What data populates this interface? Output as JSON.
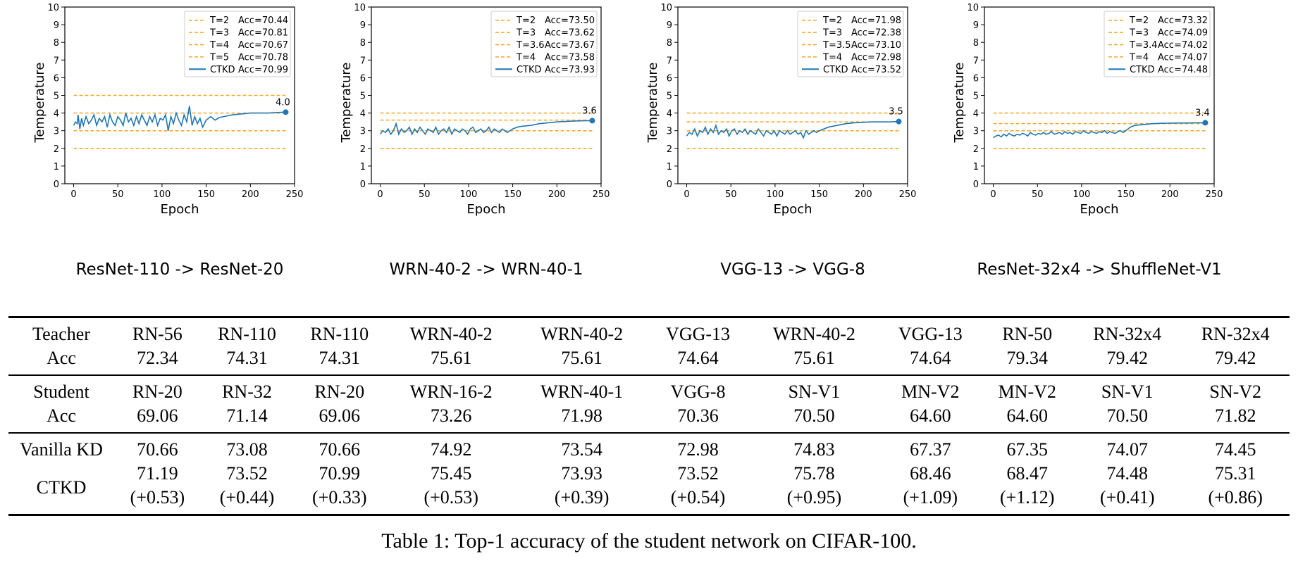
{
  "colors": {
    "threshold": "#f5a623",
    "ctkd": "#1f77b4",
    "axis": "#000000"
  },
  "chart_data": [
    {
      "type": "line",
      "title": "ResNet-110 -> ResNet-20",
      "xlabel": "Epoch",
      "ylabel": "Temperature",
      "xlim": [
        -10,
        250
      ],
      "ylim": [
        0,
        10
      ],
      "xticks": [
        0,
        50,
        100,
        150,
        200,
        250
      ],
      "yticks": [
        0,
        1,
        2,
        3,
        4,
        5,
        6,
        7,
        8,
        9,
        10
      ],
      "grid": false,
      "legend_position": "top-right",
      "thresholds": [
        {
          "label": "T=2",
          "acc": "Acc=70.44",
          "value": 2
        },
        {
          "label": "T=3",
          "acc": "Acc=70.81",
          "value": 3
        },
        {
          "label": "T=4",
          "acc": "Acc=70.67",
          "value": 4
        },
        {
          "label": "T=5",
          "acc": "Acc=70.78",
          "value": 5
        }
      ],
      "series": [
        {
          "name": "CTKD",
          "acc": "Acc=70.99",
          "x": [
            0,
            2,
            4,
            5,
            7,
            9,
            11,
            14,
            17,
            20,
            23,
            26,
            29,
            32,
            35,
            38,
            41,
            44,
            47,
            50,
            53,
            56,
            59,
            62,
            65,
            68,
            71,
            74,
            77,
            80,
            83,
            86,
            89,
            92,
            95,
            98,
            101,
            104,
            107,
            110,
            113,
            116,
            119,
            122,
            125,
            128,
            131,
            134,
            137,
            140,
            143,
            146,
            150,
            155,
            160,
            165,
            170,
            175,
            180,
            190,
            200,
            210,
            220,
            230,
            240
          ],
          "y": [
            3.3,
            3.5,
            3.4,
            3.9,
            3.1,
            3.7,
            3.3,
            3.8,
            3.4,
            3.6,
            3.9,
            3.3,
            3.7,
            3.5,
            3.8,
            3.2,
            3.9,
            3.5,
            3.3,
            3.8,
            3.6,
            3.3,
            4.0,
            3.5,
            3.7,
            3.3,
            3.8,
            3.4,
            3.9,
            3.6,
            3.3,
            3.8,
            3.5,
            3.9,
            3.3,
            3.7,
            3.6,
            3.9,
            3.0,
            3.8,
            3.4,
            4.0,
            3.6,
            3.3,
            3.9,
            3.5,
            4.4,
            3.3,
            3.8,
            3.4,
            3.7,
            3.2,
            3.6,
            3.8,
            3.6,
            3.75,
            3.8,
            3.85,
            3.9,
            3.95,
            4.0,
            4.0,
            4.0,
            4.03,
            4.05
          ],
          "end_label": "4.0"
        }
      ]
    },
    {
      "type": "line",
      "title": "WRN-40-2 -> WRN-40-1",
      "xlabel": "Epoch",
      "ylabel": "Temperature",
      "xlim": [
        -10,
        250
      ],
      "ylim": [
        0,
        10
      ],
      "xticks": [
        0,
        50,
        100,
        150,
        200,
        250
      ],
      "yticks": [
        0,
        1,
        2,
        3,
        4,
        5,
        6,
        7,
        8,
        9,
        10
      ],
      "grid": false,
      "legend_position": "top-right",
      "thresholds": [
        {
          "label": "T=2",
          "acc": "Acc=73.50",
          "value": 2
        },
        {
          "label": "T=3",
          "acc": "Acc=73.62",
          "value": 3
        },
        {
          "label": "T=3.6",
          "acc": "Acc=73.67",
          "value": 3.6
        },
        {
          "label": "T=4",
          "acc": "Acc=73.58",
          "value": 4
        }
      ],
      "series": [
        {
          "name": "CTKD",
          "acc": "Acc=73.93",
          "x": [
            0,
            3,
            6,
            9,
            12,
            15,
            18,
            21,
            24,
            27,
            30,
            33,
            36,
            39,
            42,
            45,
            48,
            51,
            54,
            57,
            60,
            63,
            66,
            69,
            72,
            75,
            78,
            81,
            84,
            87,
            90,
            93,
            96,
            99,
            102,
            105,
            108,
            111,
            114,
            117,
            120,
            123,
            126,
            129,
            132,
            135,
            138,
            141,
            144,
            147,
            150,
            155,
            160,
            170,
            180,
            190,
            200,
            210,
            220,
            230,
            240
          ],
          "y": [
            2.8,
            3.0,
            2.9,
            3.1,
            2.8,
            3.0,
            3.4,
            2.8,
            3.1,
            2.9,
            3.0,
            3.2,
            2.8,
            3.1,
            2.9,
            3.2,
            3.0,
            2.8,
            3.1,
            3.0,
            2.9,
            3.2,
            2.8,
            3.0,
            3.1,
            2.9,
            3.2,
            2.8,
            3.1,
            3.0,
            2.9,
            3.1,
            3.0,
            2.8,
            3.1,
            3.2,
            2.9,
            3.0,
            3.1,
            2.9,
            3.0,
            3.2,
            2.9,
            3.1,
            3.0,
            2.9,
            3.1,
            3.0,
            2.9,
            3.0,
            3.1,
            3.2,
            3.25,
            3.3,
            3.4,
            3.45,
            3.5,
            3.52,
            3.55,
            3.56,
            3.57
          ],
          "end_label": "3.6"
        }
      ]
    },
    {
      "type": "line",
      "title": "VGG-13 -> VGG-8",
      "xlabel": "Epoch",
      "ylabel": "Temperature",
      "xlim": [
        -10,
        250
      ],
      "ylim": [
        0,
        10
      ],
      "xticks": [
        0,
        50,
        100,
        150,
        200,
        250
      ],
      "yticks": [
        0,
        1,
        2,
        3,
        4,
        5,
        6,
        7,
        8,
        9,
        10
      ],
      "grid": false,
      "legend_position": "top-right",
      "thresholds": [
        {
          "label": "T=2",
          "acc": "Acc=71.98",
          "value": 2
        },
        {
          "label": "T=3",
          "acc": "Acc=72.38",
          "value": 3
        },
        {
          "label": "T=3.5",
          "acc": "Acc=73.10",
          "value": 3.5
        },
        {
          "label": "T=4",
          "acc": "Acc=72.98",
          "value": 4
        }
      ],
      "series": [
        {
          "name": "CTKD",
          "acc": "Acc=73.52",
          "x": [
            0,
            3,
            6,
            9,
            12,
            15,
            18,
            21,
            24,
            27,
            30,
            33,
            36,
            39,
            42,
            45,
            48,
            51,
            54,
            57,
            60,
            63,
            66,
            69,
            72,
            75,
            78,
            81,
            84,
            87,
            90,
            93,
            96,
            99,
            102,
            105,
            108,
            111,
            114,
            117,
            120,
            123,
            126,
            129,
            132,
            135,
            138,
            141,
            144,
            147,
            150,
            155,
            160,
            170,
            180,
            190,
            200,
            210,
            220,
            230,
            240
          ],
          "y": [
            2.7,
            2.9,
            2.8,
            3.1,
            2.7,
            3.0,
            2.9,
            3.2,
            2.8,
            3.1,
            2.9,
            3.3,
            2.8,
            3.0,
            2.9,
            3.1,
            2.7,
            3.0,
            3.1,
            2.8,
            3.0,
            2.9,
            3.1,
            2.8,
            3.0,
            2.9,
            2.8,
            3.1,
            2.9,
            2.7,
            3.0,
            2.9,
            2.8,
            3.0,
            2.7,
            3.0,
            2.9,
            2.8,
            3.0,
            2.8,
            2.9,
            3.0,
            2.8,
            2.9,
            2.6,
            3.0,
            2.8,
            2.9,
            3.0,
            2.9,
            3.0,
            3.1,
            3.2,
            3.3,
            3.4,
            3.45,
            3.48,
            3.5,
            3.5,
            3.5,
            3.52
          ],
          "end_label": "3.5"
        }
      ]
    },
    {
      "type": "line",
      "title": "ResNet-32x4 -> ShuffleNet-V1",
      "xlabel": "Epoch",
      "ylabel": "Temperature",
      "xlim": [
        -10,
        250
      ],
      "ylim": [
        0,
        10
      ],
      "xticks": [
        0,
        50,
        100,
        150,
        200,
        250
      ],
      "yticks": [
        0,
        1,
        2,
        3,
        4,
        5,
        6,
        7,
        8,
        9,
        10
      ],
      "grid": false,
      "legend_position": "top-right",
      "thresholds": [
        {
          "label": "T=2",
          "acc": "Acc=73.32",
          "value": 2
        },
        {
          "label": "T=3",
          "acc": "Acc=74.09",
          "value": 3
        },
        {
          "label": "T=3.4",
          "acc": "Acc=74.02",
          "value": 3.4
        },
        {
          "label": "T=4",
          "acc": "Acc=74.07",
          "value": 4
        }
      ],
      "series": [
        {
          "name": "CTKD",
          "acc": "Acc=74.48",
          "x": [
            0,
            3,
            6,
            9,
            12,
            15,
            18,
            21,
            24,
            27,
            30,
            33,
            36,
            39,
            42,
            45,
            48,
            51,
            54,
            57,
            60,
            63,
            66,
            69,
            72,
            75,
            78,
            81,
            84,
            87,
            90,
            93,
            96,
            99,
            102,
            105,
            108,
            111,
            114,
            117,
            120,
            123,
            126,
            129,
            132,
            135,
            138,
            141,
            144,
            147,
            150,
            155,
            160,
            170,
            180,
            190,
            200,
            210,
            220,
            230,
            240
          ],
          "y": [
            2.6,
            2.7,
            2.75,
            2.65,
            2.8,
            2.7,
            2.85,
            2.75,
            2.7,
            2.8,
            2.75,
            2.85,
            2.8,
            2.7,
            2.9,
            2.8,
            2.75,
            2.85,
            2.8,
            2.9,
            2.8,
            2.85,
            2.95,
            2.8,
            2.85,
            2.9,
            2.8,
            2.95,
            2.85,
            2.9,
            2.8,
            2.95,
            2.9,
            2.85,
            3.0,
            2.9,
            2.85,
            2.95,
            2.9,
            2.85,
            2.95,
            2.9,
            3.0,
            2.85,
            2.95,
            2.9,
            2.85,
            2.95,
            3.0,
            2.9,
            3.0,
            3.2,
            3.3,
            3.35,
            3.4,
            3.42,
            3.43,
            3.44,
            3.44,
            3.45,
            3.45
          ],
          "end_label": "3.4"
        }
      ]
    }
  ],
  "table": {
    "groups": [
      {
        "rows": [
          {
            "label": "Teacher",
            "cells": [
              "RN-56",
              "RN-110",
              "RN-110",
              "WRN-40-2",
              "WRN-40-2",
              "VGG-13",
              "WRN-40-2",
              "VGG-13",
              "RN-50",
              "RN-32x4",
              "RN-32x4"
            ]
          },
          {
            "label": "Acc",
            "cells": [
              "72.34",
              "74.31",
              "74.31",
              "75.61",
              "75.61",
              "74.64",
              "75.61",
              "74.64",
              "79.34",
              "79.42",
              "79.42"
            ]
          }
        ]
      },
      {
        "rows": [
          {
            "label": "Student",
            "cells": [
              "RN-20",
              "RN-32",
              "RN-20",
              "WRN-16-2",
              "WRN-40-1",
              "VGG-8",
              "SN-V1",
              "MN-V2",
              "MN-V2",
              "SN-V1",
              "SN-V2"
            ]
          },
          {
            "label": "Acc",
            "cells": [
              "69.06",
              "71.14",
              "69.06",
              "73.26",
              "71.98",
              "70.36",
              "70.50",
              "64.60",
              "64.60",
              "70.50",
              "71.82"
            ]
          }
        ]
      },
      {
        "rows": [
          {
            "label": "Vanilla KD",
            "cells": [
              "70.66",
              "73.08",
              "70.66",
              "74.92",
              "73.54",
              "72.98",
              "74.83",
              "67.37",
              "67.35",
              "74.07",
              "74.45"
            ]
          },
          {
            "label": "CTKD",
            "cells": [
              "71.19",
              "73.52",
              "70.99",
              "75.45",
              "73.93",
              "73.52",
              "75.78",
              "68.46",
              "68.47",
              "74.48",
              "75.31"
            ]
          },
          {
            "label": "",
            "cells": [
              "(+0.53)",
              "(+0.44)",
              "(+0.33)",
              "(+0.53)",
              "(+0.39)",
              "(+0.54)",
              "(+0.95)",
              "(+1.09)",
              "(+1.12)",
              "(+0.41)",
              "(+0.86)"
            ]
          }
        ]
      }
    ]
  },
  "caption": "Table 1: Top-1 accuracy of the student network on CIFAR-100."
}
